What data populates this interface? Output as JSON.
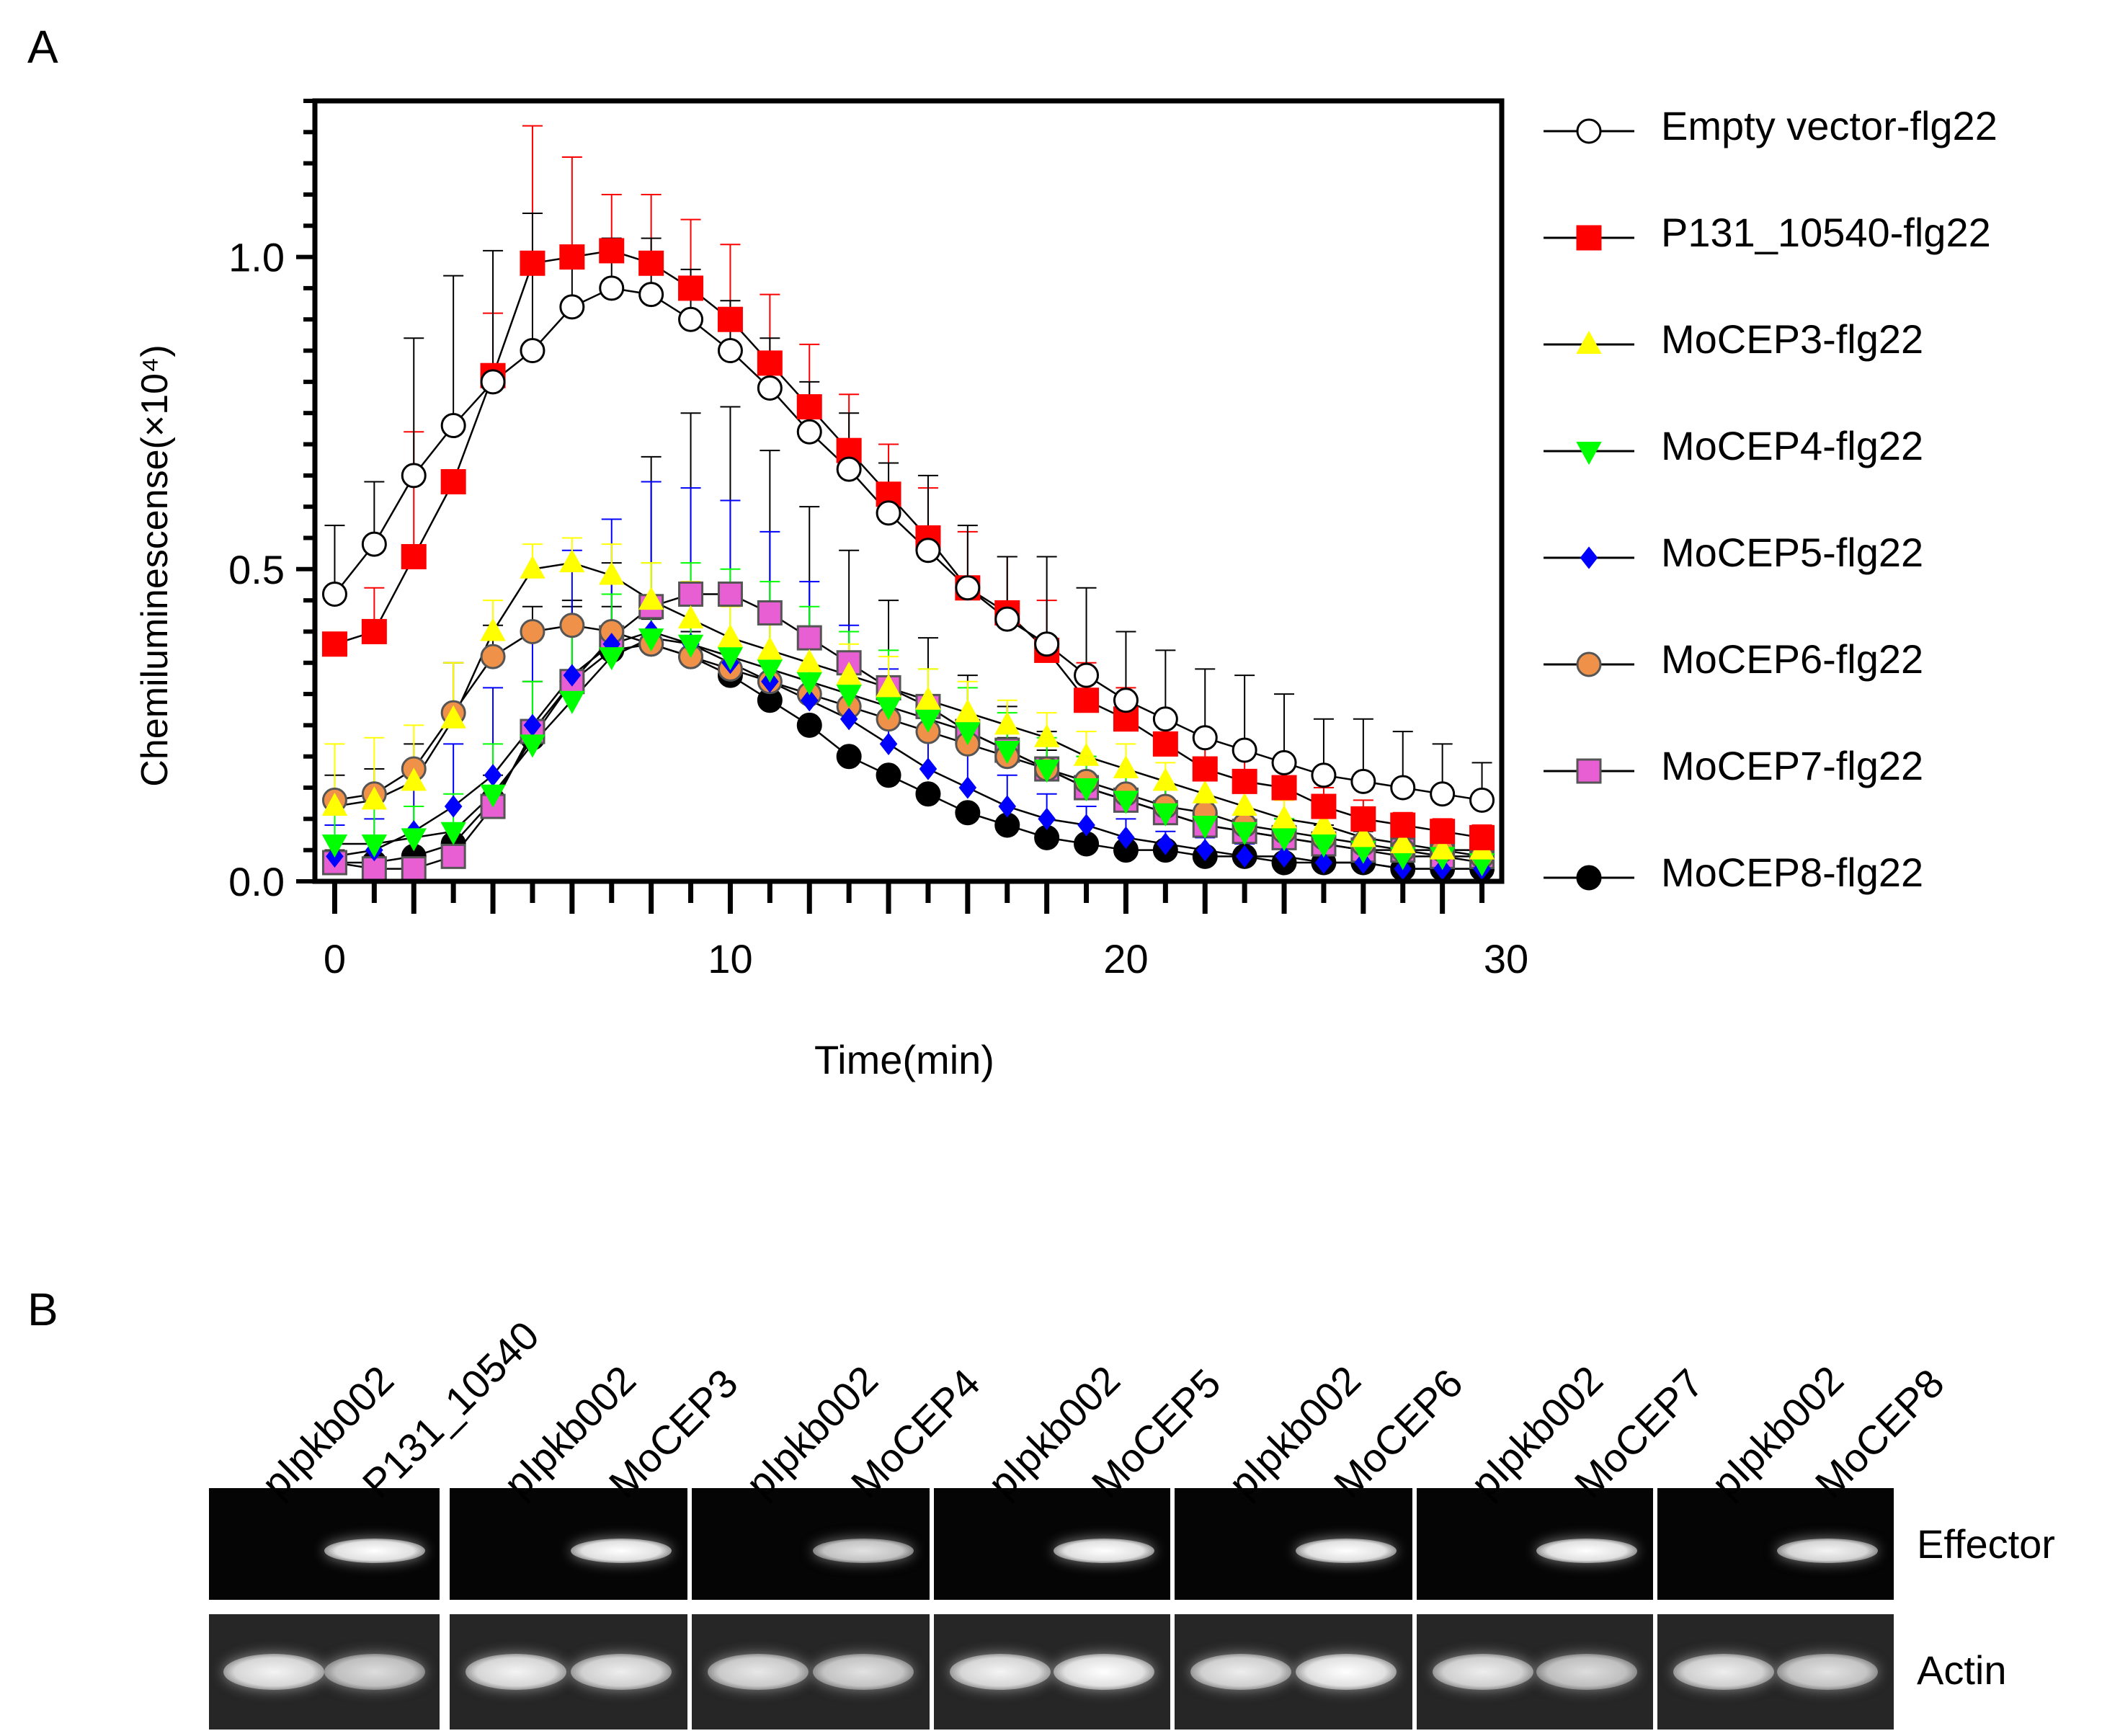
{
  "panel_a_label": "A",
  "panel_b_label": "B",
  "chart_data": {
    "type": "line",
    "title": "",
    "xlabel": "Time(min)",
    "ylabel": "Chemiluminescense(×10⁴)",
    "xlim": [
      -0.5,
      29.5
    ],
    "ylim": [
      0,
      1.25
    ],
    "xticks": [
      0,
      10,
      20,
      30
    ],
    "yticks": [
      0.0,
      0.5,
      1.0
    ],
    "ytick_labels": [
      "0.0",
      "0.5",
      "1.0"
    ],
    "xtick_labels": [
      "0",
      "10",
      "20",
      "30"
    ],
    "grid": false,
    "legend_position": "right",
    "x": [
      0,
      1,
      2,
      3,
      4,
      5,
      6,
      7,
      8,
      9,
      10,
      11,
      12,
      13,
      14,
      15,
      16,
      17,
      18,
      19,
      20,
      21,
      22,
      23,
      24,
      25,
      26,
      27,
      28,
      29
    ],
    "series": [
      {
        "name": "Empty vector-flg22",
        "marker": "circle-open",
        "color": "#ffffff",
        "edge": "#000000",
        "error_color": "#000000",
        "values": [
          0.46,
          0.54,
          0.65,
          0.73,
          0.8,
          0.85,
          0.92,
          0.95,
          0.94,
          0.9,
          0.85,
          0.79,
          0.72,
          0.66,
          0.59,
          0.53,
          0.47,
          0.42,
          0.38,
          0.33,
          0.29,
          0.26,
          0.23,
          0.21,
          0.19,
          0.17,
          0.16,
          0.15,
          0.14,
          0.13
        ],
        "errors": [
          0.11,
          0.1,
          0.22,
          0.24,
          0.21,
          0.22,
          0.08,
          0.08,
          0.09,
          0.08,
          0.08,
          0.08,
          0.08,
          0.09,
          0.08,
          0.12,
          0.1,
          0.1,
          0.14,
          0.14,
          0.11,
          0.11,
          0.11,
          0.12,
          0.11,
          0.09,
          0.1,
          0.09,
          0.08,
          0.06
        ]
      },
      {
        "name": "P131_10540-flg22",
        "marker": "square",
        "color": "#ff0000",
        "edge": "#ff0000",
        "error_color": "#ff0000",
        "values": [
          0.38,
          0.4,
          0.52,
          0.64,
          0.81,
          0.99,
          1.0,
          1.01,
          0.99,
          0.95,
          0.9,
          0.83,
          0.76,
          0.69,
          0.62,
          0.55,
          0.47,
          0.43,
          0.37,
          0.29,
          0.26,
          0.22,
          0.18,
          0.16,
          0.15,
          0.12,
          0.1,
          0.09,
          0.08,
          0.07
        ],
        "errors": [
          0.0,
          0.07,
          0.2,
          0.0,
          0.1,
          0.22,
          0.16,
          0.09,
          0.11,
          0.11,
          0.12,
          0.11,
          0.1,
          0.09,
          0.08,
          0.08,
          0.09,
          0.09,
          0.08,
          0.06,
          0.05,
          0.04,
          0.04,
          0.04,
          0.04,
          0.03,
          0.03,
          0.02,
          0.02,
          0.02
        ]
      },
      {
        "name": "MoCEP3-flg22",
        "marker": "triangle-up",
        "color": "#ffff00",
        "edge": "#ffff00",
        "error_color": "#ffff00",
        "values": [
          0.12,
          0.13,
          0.16,
          0.26,
          0.4,
          0.5,
          0.51,
          0.49,
          0.45,
          0.42,
          0.39,
          0.37,
          0.35,
          0.33,
          0.31,
          0.29,
          0.27,
          0.25,
          0.23,
          0.2,
          0.18,
          0.16,
          0.14,
          0.12,
          0.1,
          0.09,
          0.07,
          0.06,
          0.05,
          0.05
        ],
        "errors": [
          0.1,
          0.1,
          0.09,
          0.09,
          0.05,
          0.04,
          0.04,
          0.05,
          0.06,
          0.06,
          0.05,
          0.05,
          0.05,
          0.05,
          0.05,
          0.05,
          0.05,
          0.04,
          0.04,
          0.04,
          0.04,
          0.03,
          0.03,
          0.03,
          0.03,
          0.03,
          0.02,
          0.02,
          0.02,
          0.02
        ]
      },
      {
        "name": "MoCEP4-flg22",
        "marker": "triangle-down",
        "color": "#00ff00",
        "edge": "#00ff00",
        "error_color": "#00ff00",
        "values": [
          0.06,
          0.06,
          0.07,
          0.08,
          0.14,
          0.22,
          0.29,
          0.36,
          0.39,
          0.38,
          0.36,
          0.34,
          0.32,
          0.3,
          0.28,
          0.26,
          0.24,
          0.21,
          0.18,
          0.15,
          0.13,
          0.11,
          0.09,
          0.08,
          0.07,
          0.06,
          0.05,
          0.04,
          0.04,
          0.03
        ],
        "errors": [
          0.06,
          0.06,
          0.05,
          0.06,
          0.08,
          0.1,
          0.12,
          0.1,
          0.12,
          0.13,
          0.14,
          0.14,
          0.12,
          0.1,
          0.09,
          0.08,
          0.07,
          0.06,
          0.05,
          0.05,
          0.04,
          0.04,
          0.03,
          0.03,
          0.03,
          0.02,
          0.02,
          0.02,
          0.02,
          0.02
        ]
      },
      {
        "name": "MoCEP5-flg22",
        "marker": "diamond",
        "color": "#0000ff",
        "edge": "#0000ff",
        "error_color": "#0000ff",
        "values": [
          0.04,
          0.05,
          0.08,
          0.12,
          0.17,
          0.25,
          0.33,
          0.38,
          0.4,
          0.38,
          0.35,
          0.32,
          0.29,
          0.26,
          0.22,
          0.18,
          0.15,
          0.12,
          0.1,
          0.09,
          0.07,
          0.06,
          0.05,
          0.04,
          0.04,
          0.03,
          0.03,
          0.02,
          0.02,
          0.02
        ],
        "errors": [
          0.05,
          0.05,
          0.07,
          0.1,
          0.14,
          0.16,
          0.2,
          0.2,
          0.24,
          0.25,
          0.26,
          0.24,
          0.19,
          0.15,
          0.12,
          0.09,
          0.07,
          0.05,
          0.04,
          0.03,
          0.03,
          0.02,
          0.02,
          0.02,
          0.02,
          0.01,
          0.01,
          0.01,
          0.01,
          0.01
        ]
      },
      {
        "name": "MoCEP6-flg22",
        "marker": "circle",
        "color": "#f0914a",
        "edge": "#555555",
        "error_color": "#000000",
        "values": [
          0.13,
          0.14,
          0.18,
          0.27,
          0.36,
          0.4,
          0.41,
          0.4,
          0.38,
          0.36,
          0.34,
          0.32,
          0.3,
          0.28,
          0.26,
          0.24,
          0.22,
          0.2,
          0.18,
          0.16,
          0.14,
          0.12,
          0.11,
          0.09,
          0.08,
          0.07,
          0.06,
          0.05,
          0.05,
          0.04
        ],
        "errors": [
          0.04,
          0.04,
          0.04,
          0.08,
          0.05,
          0.04,
          0.04,
          0.04,
          0.04,
          0.04,
          0.04,
          0.04,
          0.04,
          0.04,
          0.04,
          0.04,
          0.04,
          0.03,
          0.03,
          0.03,
          0.03,
          0.03,
          0.02,
          0.02,
          0.02,
          0.02,
          0.02,
          0.02,
          0.02,
          0.02
        ]
      },
      {
        "name": "MoCEP7-flg22",
        "marker": "square-pink",
        "color": "#e85fd3",
        "edge": "#555555",
        "error_color": "#000000",
        "values": [
          0.03,
          0.02,
          0.02,
          0.04,
          0.12,
          0.24,
          0.32,
          0.39,
          0.44,
          0.46,
          0.46,
          0.43,
          0.39,
          0.35,
          0.31,
          0.28,
          0.24,
          0.21,
          0.18,
          0.15,
          0.13,
          0.11,
          0.09,
          0.08,
          0.07,
          0.06,
          0.05,
          0.05,
          0.04,
          0.04
        ],
        "errors": [
          0.02,
          0.01,
          0.01,
          0.02,
          0.05,
          0.08,
          0.12,
          0.12,
          0.24,
          0.29,
          0.3,
          0.26,
          0.21,
          0.18,
          0.14,
          0.11,
          0.09,
          0.07,
          0.06,
          0.05,
          0.04,
          0.04,
          0.03,
          0.03,
          0.03,
          0.02,
          0.02,
          0.02,
          0.02,
          0.02
        ]
      },
      {
        "name": "MoCEP8-flg22",
        "marker": "circle-black",
        "color": "#000000",
        "edge": "#000000",
        "error_color": "#000000",
        "values": [
          0.03,
          0.03,
          0.04,
          0.06,
          0.13,
          0.23,
          0.32,
          0.37,
          0.38,
          0.36,
          0.33,
          0.29,
          0.25,
          0.2,
          0.17,
          0.14,
          0.11,
          0.09,
          0.07,
          0.06,
          0.05,
          0.05,
          0.04,
          0.04,
          0.03,
          0.03,
          0.03,
          0.02,
          0.02,
          0.02
        ],
        "errors": [
          0.0,
          0.0,
          0.0,
          0.0,
          0.0,
          0.0,
          0.0,
          0.0,
          0.0,
          0.0,
          0.0,
          0.0,
          0.0,
          0.0,
          0.0,
          0.0,
          0.0,
          0.0,
          0.0,
          0.0,
          0.0,
          0.0,
          0.0,
          0.0,
          0.0,
          0.0,
          0.0,
          0.0,
          0.0,
          0.0
        ]
      }
    ]
  },
  "gel": {
    "lanes": [
      "pIpkb002",
      "P131_10540",
      "pIpkb002",
      "MoCEP3",
      "pIpkb002",
      "MoCEP4",
      "pIpkb002",
      "MoCEP5",
      "pIpkb002",
      "MoCEP6",
      "pIpkb002",
      "MoCEP7",
      "pIpkb002",
      "MoCEP8"
    ],
    "rows": [
      "Effector",
      "Actin"
    ],
    "effector_band_intensity": [
      0,
      1.0,
      0,
      1.0,
      0,
      0.75,
      0,
      1.0,
      0,
      1.0,
      0,
      1.0,
      0,
      0.9
    ],
    "actin_band_intensity": [
      0.9,
      0.7,
      0.9,
      0.85,
      0.8,
      0.75,
      0.9,
      1.0,
      0.85,
      1.0,
      0.85,
      0.7,
      0.85,
      0.75
    ]
  }
}
